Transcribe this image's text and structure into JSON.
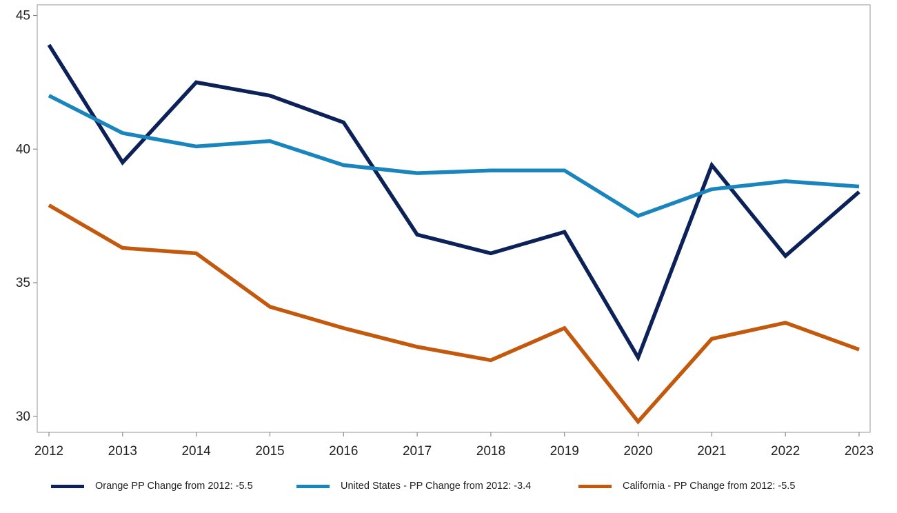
{
  "chart_data": {
    "type": "line",
    "title": "",
    "xlabel": "",
    "ylabel": "",
    "x": [
      2012,
      2013,
      2014,
      2015,
      2016,
      2017,
      2018,
      2019,
      2020,
      2021,
      2022,
      2023
    ],
    "xticks": [
      "2012",
      "2013",
      "2014",
      "2015",
      "2016",
      "2017",
      "2018",
      "2019",
      "2020",
      "2021",
      "2022",
      "2023"
    ],
    "yticks": [
      30,
      35,
      40,
      45
    ],
    "ylim": [
      29.4,
      45.4
    ],
    "grid": false,
    "legend_position": "bottom",
    "series": [
      {
        "name": "Orange PP Change from 2012: -5.5",
        "color": "#0c2157",
        "values": [
          43.9,
          39.5,
          42.5,
          42.0,
          41.0,
          36.8,
          36.1,
          36.9,
          32.2,
          39.4,
          36.0,
          38.4
        ]
      },
      {
        "name": "United States - PP Change from 2012: -3.4",
        "color": "#1a85bd",
        "values": [
          42.0,
          40.6,
          40.1,
          40.3,
          39.4,
          39.1,
          39.2,
          39.2,
          37.5,
          38.5,
          38.8,
          38.6
        ]
      },
      {
        "name": "California - PP Change from 2012: -5.5",
        "color": "#c2590d",
        "values": [
          37.9,
          36.3,
          36.1,
          34.1,
          33.3,
          32.6,
          32.1,
          33.3,
          29.8,
          32.9,
          33.5,
          32.5
        ]
      }
    ]
  }
}
